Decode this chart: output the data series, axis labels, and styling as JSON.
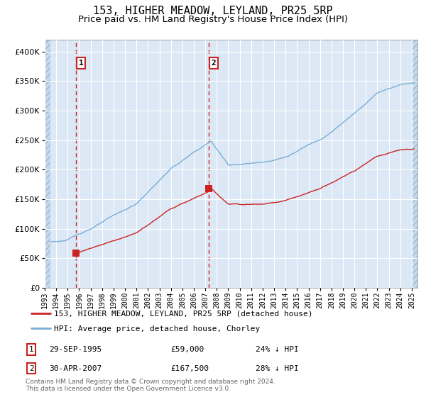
{
  "title": "153, HIGHER MEADOW, LEYLAND, PR25 5RP",
  "subtitle": "Price paid vs. HM Land Registry's House Price Index (HPI)",
  "legend_line1": "153, HIGHER MEADOW, LEYLAND, PR25 5RP (detached house)",
  "legend_line2": "HPI: Average price, detached house, Chorley",
  "footnote": "Contains HM Land Registry data © Crown copyright and database right 2024.\nThis data is licensed under the Open Government Licence v3.0.",
  "sale1_date": "29-SEP-1995",
  "sale1_price": "£59,000",
  "sale1_note": "24% ↓ HPI",
  "sale2_date": "30-APR-2007",
  "sale2_price": "£167,500",
  "sale2_note": "28% ↓ HPI",
  "sale1_x": 1995.75,
  "sale1_y": 59000,
  "sale2_x": 2007.33,
  "sale2_y": 167500,
  "ylim": [
    0,
    420000
  ],
  "yticks": [
    0,
    50000,
    100000,
    150000,
    200000,
    250000,
    300000,
    350000,
    400000
  ],
  "ytick_labels": [
    "£0",
    "£50K",
    "£100K",
    "£150K",
    "£200K",
    "£250K",
    "£300K",
    "£350K",
    "£400K"
  ],
  "xlim_start": 1993.0,
  "xlim_end": 2025.5,
  "hpi_color": "#7aaed6",
  "sale_color": "#cc2222",
  "bg_color": "#dce8f5",
  "fig_bg": "#ffffff",
  "grid_color": "#ffffff",
  "vline_color": "#cc2222",
  "title_fontsize": 11,
  "subtitle_fontsize": 9.5
}
